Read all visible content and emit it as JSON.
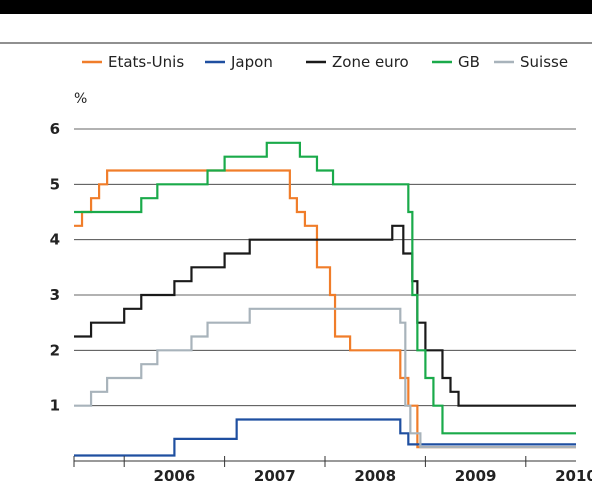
{
  "chart_data": {
    "type": "line",
    "ylabel": "%",
    "ylim": [
      0,
      6
    ],
    "xlim": [
      2005.5,
      2010.5
    ],
    "y_ticks": [
      "1",
      "2",
      "3",
      "4",
      "5",
      "6"
    ],
    "x_ticks": [
      "2006",
      "2007",
      "2008",
      "2009",
      "2010"
    ],
    "grid": true,
    "legend_position": "top",
    "series": [
      {
        "name": "Etats-Unis",
        "color": "#f07d2a",
        "step": true,
        "x": [
          2005.5,
          2005.58,
          2005.67,
          2005.75,
          2005.83,
          2006.0,
          2006.08,
          2006.17,
          2006.25,
          2006.33,
          2006.42,
          2006.5,
          2006.58,
          2006.67,
          2006.75,
          2006.83,
          2006.92,
          2007.0,
          2007.17,
          2007.33,
          2007.5,
          2007.65,
          2007.72,
          2007.8,
          2007.92,
          2008.05,
          2008.1,
          2008.25,
          2008.33,
          2008.5,
          2008.75,
          2008.83,
          2008.92,
          2009.0,
          2009.25,
          2009.5,
          2010.0,
          2010.5
        ],
        "y": [
          4.25,
          4.5,
          4.75,
          5.0,
          5.25,
          5.25,
          5.25,
          5.25,
          5.25,
          5.25,
          5.25,
          5.25,
          5.25,
          5.25,
          5.25,
          5.25,
          5.25,
          5.25,
          5.25,
          5.25,
          5.25,
          4.75,
          4.5,
          4.25,
          3.5,
          3.0,
          2.25,
          2.0,
          2.0,
          2.0,
          1.5,
          1.0,
          0.25,
          0.25,
          0.25,
          0.25,
          0.25,
          0.25
        ]
      },
      {
        "name": "Japon",
        "color": "#1f4fa0",
        "step": true,
        "x": [
          2005.5,
          2006.5,
          2007.12,
          2008.75,
          2008.83,
          2009.0,
          2010.5
        ],
        "y": [
          0.1,
          0.4,
          0.75,
          0.5,
          0.3,
          0.3,
          0.3
        ]
      },
      {
        "name": "Zone euro",
        "color": "#1a1a1a",
        "step": true,
        "x": [
          2005.5,
          2005.67,
          2005.83,
          2006.0,
          2006.17,
          2006.33,
          2006.5,
          2006.67,
          2006.83,
          2007.0,
          2007.25,
          2007.5,
          2007.75,
          2008.0,
          2008.25,
          2008.5,
          2008.67,
          2008.78,
          2008.87,
          2008.92,
          2009.0,
          2009.17,
          2009.25,
          2009.33,
          2009.5,
          2010.0,
          2010.5
        ],
        "y": [
          2.25,
          2.5,
          2.5,
          2.75,
          3.0,
          3.0,
          3.25,
          3.5,
          3.5,
          3.75,
          4.0,
          4.0,
          4.0,
          4.0,
          4.0,
          4.0,
          4.25,
          3.75,
          3.25,
          2.5,
          2.0,
          1.5,
          1.25,
          1.0,
          1.0,
          1.0,
          1.0
        ]
      },
      {
        "name": "GB",
        "color": "#1aaa4a",
        "step": true,
        "x": [
          2005.5,
          2006.0,
          2006.17,
          2006.33,
          2006.58,
          2006.83,
          2007.0,
          2007.25,
          2007.42,
          2007.58,
          2007.75,
          2007.92,
          2008.08,
          2008.33,
          2008.5,
          2008.83,
          2008.87,
          2008.92,
          2009.0,
          2009.08,
          2009.17,
          2009.33,
          2010.0,
          2010.5
        ],
        "y": [
          4.5,
          4.5,
          4.75,
          5.0,
          5.0,
          5.25,
          5.5,
          5.5,
          5.75,
          5.75,
          5.5,
          5.25,
          5.0,
          5.0,
          5.0,
          4.5,
          3.0,
          2.0,
          1.5,
          1.0,
          0.5,
          0.5,
          0.5,
          0.5
        ]
      },
      {
        "name": "Suisse",
        "color": "#a8b3bb",
        "step": true,
        "x": [
          2005.5,
          2005.67,
          2005.83,
          2006.0,
          2006.17,
          2006.33,
          2006.5,
          2006.67,
          2006.83,
          2007.0,
          2007.25,
          2007.5,
          2007.75,
          2008.0,
          2008.25,
          2008.5,
          2008.75,
          2008.8,
          2008.85,
          2008.95,
          2009.0,
          2010.0,
          2010.5
        ],
        "y": [
          1.0,
          1.25,
          1.5,
          1.5,
          1.75,
          2.0,
          2.0,
          2.25,
          2.5,
          2.5,
          2.75,
          2.75,
          2.75,
          2.75,
          2.75,
          2.75,
          2.5,
          1.0,
          0.5,
          0.25,
          0.25,
          0.25,
          0.25
        ]
      }
    ]
  }
}
